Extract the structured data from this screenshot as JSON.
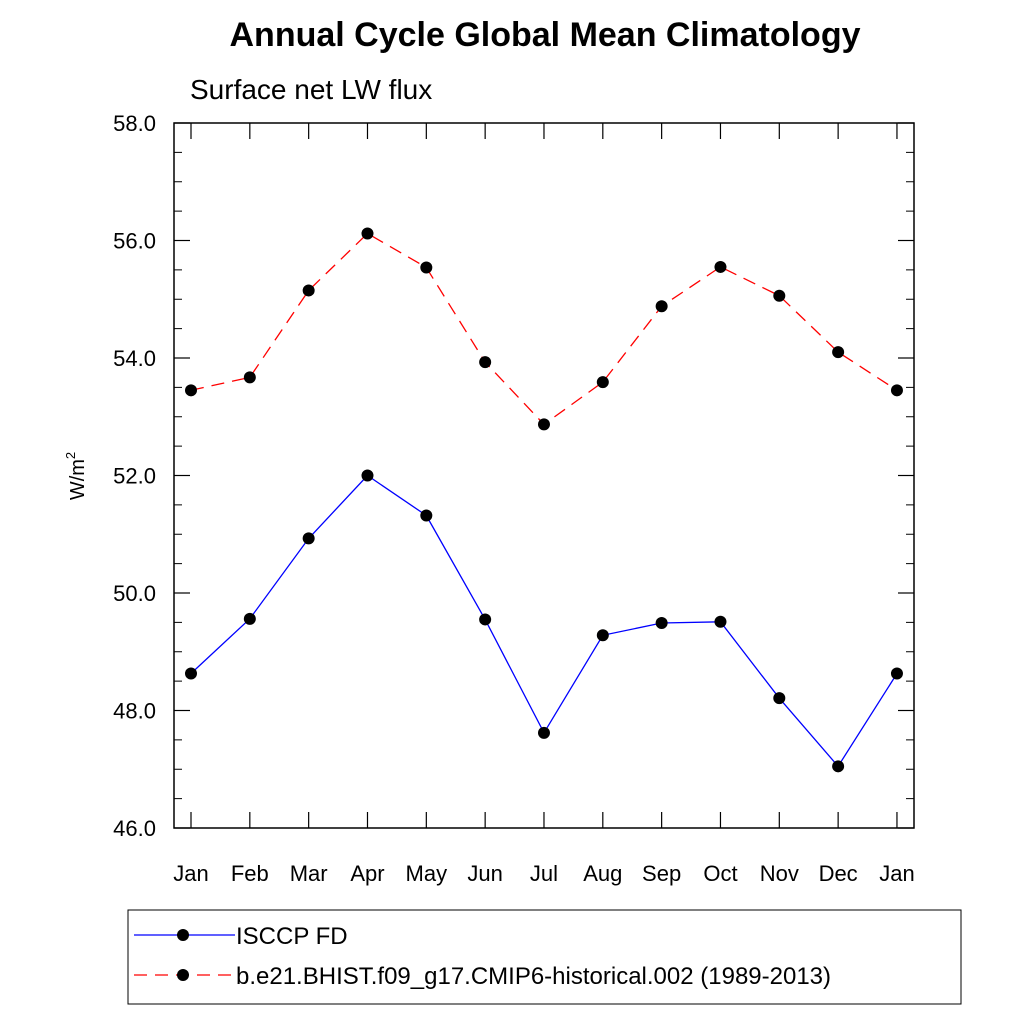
{
  "chart_data": {
    "type": "line",
    "title": "Annual Cycle Global Mean Climatology",
    "subtitle": "Surface net LW flux",
    "ylabel": "W/m",
    "ylabel_sup": "2",
    "xlabel": "",
    "categories": [
      "Jan",
      "Feb",
      "Mar",
      "Apr",
      "May",
      "Jun",
      "Jul",
      "Aug",
      "Sep",
      "Oct",
      "Nov",
      "Dec",
      "Jan"
    ],
    "ylim": [
      46.0,
      58.0
    ],
    "yticks": [
      "46.0",
      "48.0",
      "50.0",
      "52.0",
      "54.0",
      "56.0",
      "58.0"
    ],
    "grid": false,
    "legend_position": "bottom",
    "series": [
      {
        "name": "ISCCP FD",
        "color": "#0000ff",
        "dash": "solid",
        "marker": "filled-circle",
        "values": [
          48.63,
          49.56,
          50.93,
          52.0,
          51.32,
          49.55,
          47.62,
          49.28,
          49.49,
          49.51,
          48.21,
          47.05,
          48.63
        ]
      },
      {
        "name": "b.e21.BHIST.f09_g17.CMIP6-historical.002 (1989-2013)",
        "color": "#ff0000",
        "dash": "dashed",
        "marker": "filled-circle",
        "values": [
          53.45,
          53.67,
          55.15,
          56.12,
          55.54,
          53.93,
          52.87,
          53.59,
          54.88,
          55.55,
          55.06,
          54.1,
          53.45
        ]
      }
    ]
  }
}
